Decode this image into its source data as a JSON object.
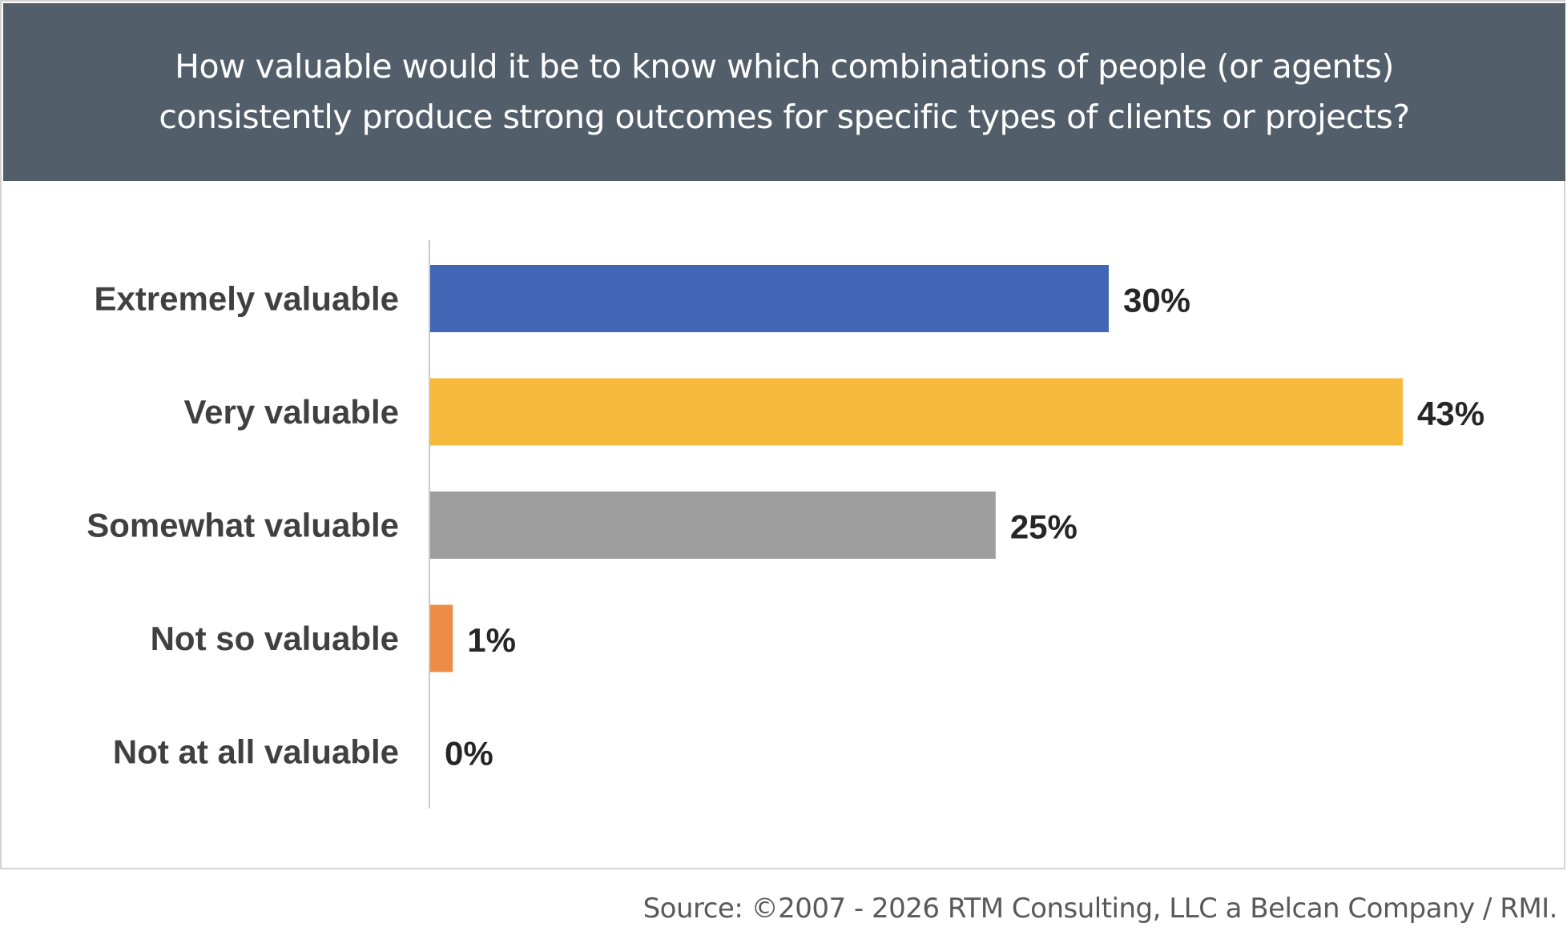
{
  "chart_data": {
    "type": "bar",
    "orientation": "horizontal",
    "title": "How valuable would it be to know which combinations of people (or agents) consistently produce strong outcomes for specific types of clients or projects?",
    "categories": [
      "Extremely valuable",
      "Very valuable",
      "Somewhat valuable",
      "Not so valuable",
      "Not at all valuable"
    ],
    "values": [
      30,
      43,
      25,
      1,
      0
    ],
    "data_labels": [
      "30%",
      "43%",
      "25%",
      "1%",
      "0%"
    ],
    "colors": [
      "#4066b5",
      "#f7b93b",
      "#9e9e9e",
      "#ec8c47",
      "#cccccc"
    ],
    "value_unit": "%",
    "xlim": [
      0,
      43
    ],
    "grid": false,
    "legend": "none"
  },
  "source": "Source: ©2007 - 2026 RTM Consulting, LLC a Belcan Company / RMI."
}
